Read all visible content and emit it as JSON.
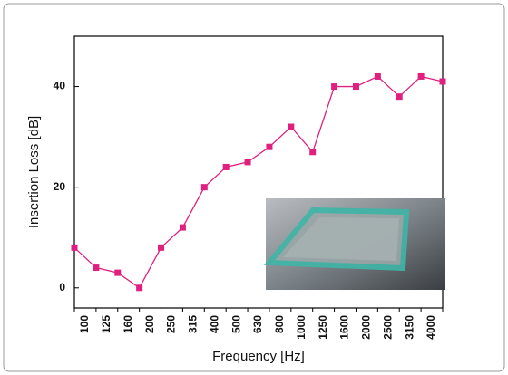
{
  "chart_data": {
    "type": "line",
    "x_label": "Frequency [Hz]",
    "y_label": "Insertion Loss [dB]",
    "categories": [
      "100",
      "125",
      "160",
      "200",
      "250",
      "315",
      "400",
      "500",
      "630",
      "800",
      "1000",
      "1250",
      "1600",
      "2000",
      "2500",
      "3150",
      "4000",
      null
    ],
    "series": [
      {
        "name": "Insertion Loss",
        "color": "#e0207f",
        "values": [
          8,
          4,
          3,
          0,
          8,
          12,
          20,
          24,
          25,
          28,
          32,
          27,
          40,
          40,
          42,
          38,
          42,
          41
        ]
      }
    ],
    "ylim": [
      -4,
      50
    ],
    "yticks": [
      0,
      20,
      40
    ],
    "grid": false
  }
}
